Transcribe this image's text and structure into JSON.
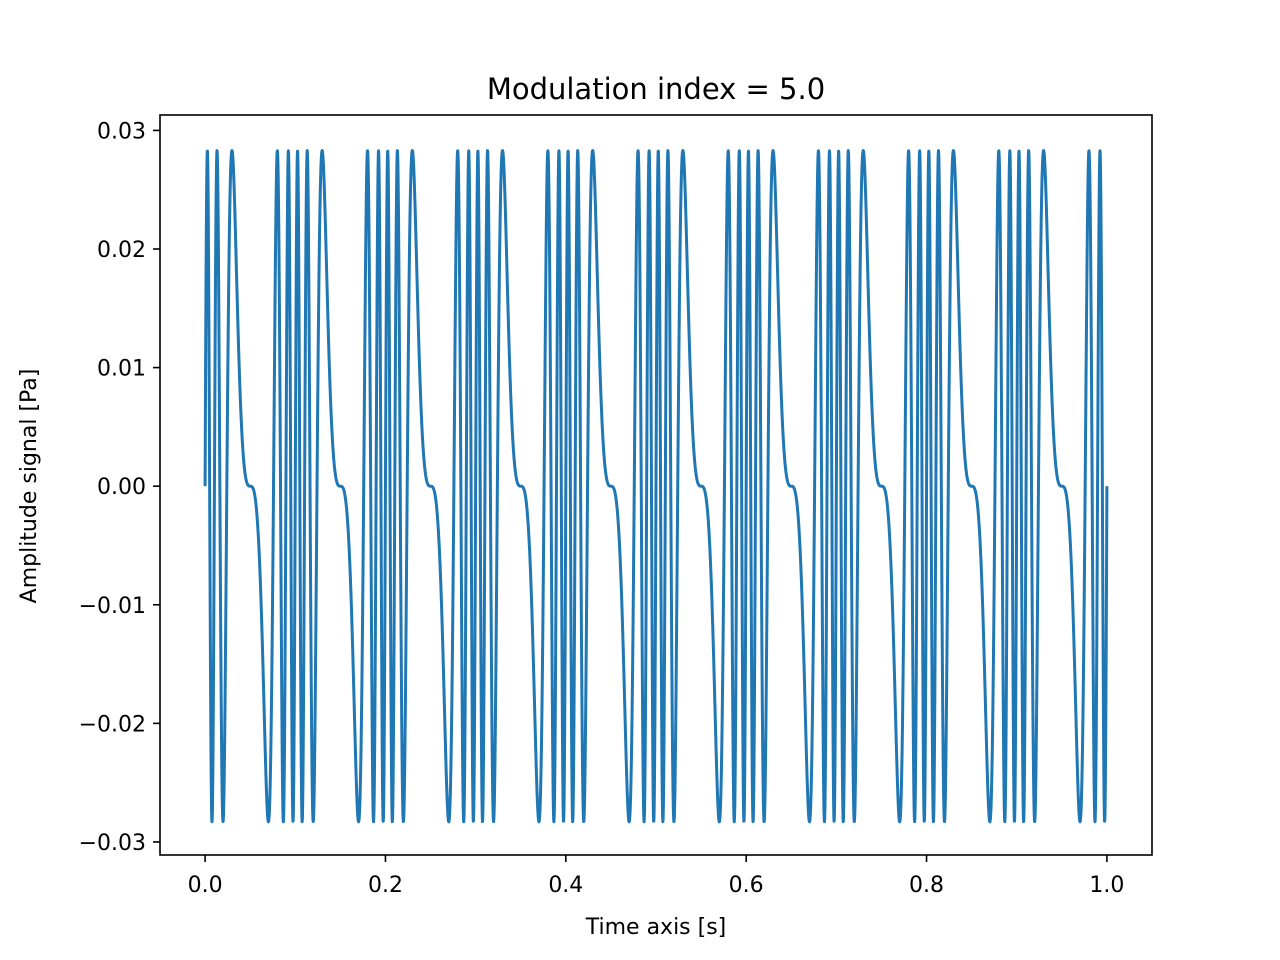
{
  "chart_data": {
    "type": "line",
    "title": "Modulation index = 5.0",
    "xlabel": "Time axis [s]",
    "ylabel": "Amplitude signal [Pa]",
    "xlim": [
      -0.05,
      1.05
    ],
    "ylim": [
      -0.0311,
      0.0313
    ],
    "xticks": [
      0.0,
      0.2,
      0.4,
      0.6,
      0.8,
      1.0
    ],
    "xtick_labels": [
      "0.0",
      "0.2",
      "0.4",
      "0.6",
      "0.8",
      "1.0"
    ],
    "yticks": [
      0.03,
      0.02,
      0.01,
      0.0,
      -0.01,
      -0.02,
      -0.03
    ],
    "ytick_labels": [
      "0.03",
      "0.02",
      "0.01",
      "0.00",
      "−0.01",
      "−0.02",
      "−0.03"
    ],
    "grid": false,
    "legend": "none",
    "series": [
      {
        "color": "#1f77b4",
        "x_range": [
          0.0,
          1.0
        ],
        "amplitude": 0.0283,
        "carrier_frequency_hz": 50,
        "modulating_frequency_hz": 10,
        "modulation_index": 5.0
      }
    ]
  }
}
